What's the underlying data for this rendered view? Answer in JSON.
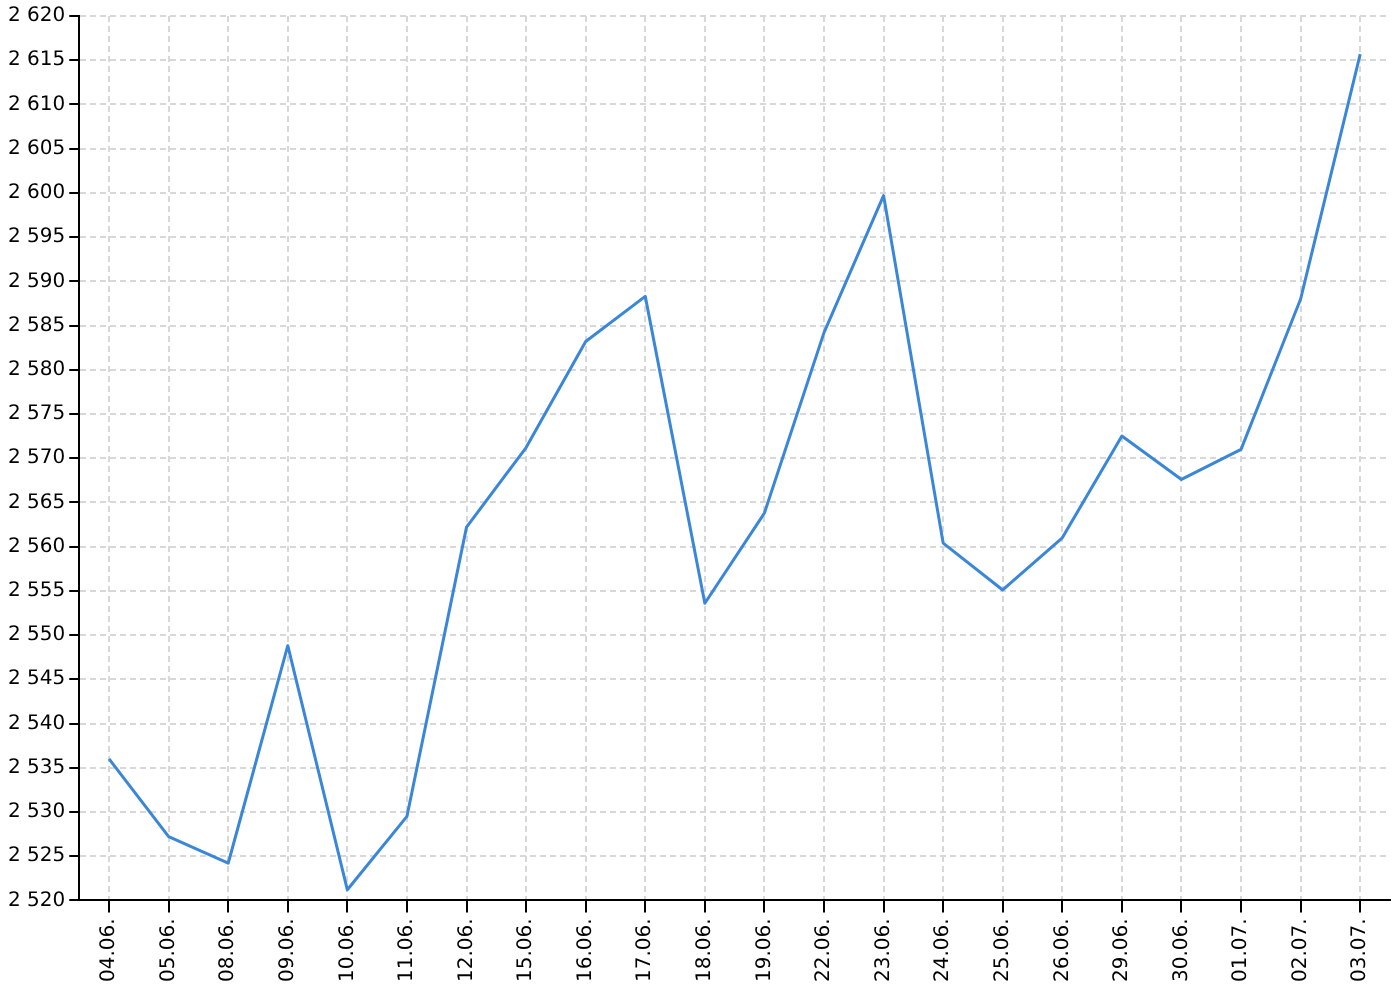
{
  "chart_data": {
    "type": "line",
    "categories": [
      "04.06.",
      "05.06.",
      "08.06.",
      "09.06.",
      "10.06.",
      "11.06.",
      "12.06.",
      "15.06.",
      "16.06.",
      "17.06.",
      "18.06.",
      "19.06.",
      "22.06.",
      "23.06.",
      "24.06.",
      "25.06.",
      "26.06.",
      "29.06.",
      "30.06.",
      "01.07.",
      "02.07.",
      "03.07."
    ],
    "series": [
      {
        "color": "#3a87d9",
        "values": [
          2536,
          2527.2,
          2524.2,
          2548.8,
          2521.2,
          2529.5,
          2562.2,
          2571.2,
          2583.2,
          2588.3,
          2553.6,
          2563.8,
          2584.2,
          2599.7,
          2560.4,
          2555.1,
          2561,
          2572.5,
          2567.6,
          2571,
          2588,
          2615.7
        ]
      }
    ],
    "ylim": [
      2520,
      2620
    ],
    "yticks": [
      {
        "value": 2520,
        "label": "2 520"
      },
      {
        "value": 2525,
        "label": "2 525"
      },
      {
        "value": 2530,
        "label": "2 530"
      },
      {
        "value": 2535,
        "label": "2 535"
      },
      {
        "value": 2540,
        "label": "2 540"
      },
      {
        "value": 2545,
        "label": "2 545"
      },
      {
        "value": 2550,
        "label": "2 550"
      },
      {
        "value": 2555,
        "label": "2 555"
      },
      {
        "value": 2560,
        "label": "2 560"
      },
      {
        "value": 2565,
        "label": "2 565"
      },
      {
        "value": 2570,
        "label": "2 570"
      },
      {
        "value": 2575,
        "label": "2 575"
      },
      {
        "value": 2580,
        "label": "2 580"
      },
      {
        "value": 2585,
        "label": "2 585"
      },
      {
        "value": 2590,
        "label": "2 590"
      },
      {
        "value": 2595,
        "label": "2 595"
      },
      {
        "value": 2600,
        "label": "2 600"
      },
      {
        "value": 2605,
        "label": "2 605"
      },
      {
        "value": 2610,
        "label": "2 610"
      },
      {
        "value": 2615,
        "label": "2 615"
      },
      {
        "value": 2620,
        "label": "2 620"
      }
    ],
    "grid": true,
    "legend": false,
    "marker": "none",
    "line_style": "solid"
  }
}
